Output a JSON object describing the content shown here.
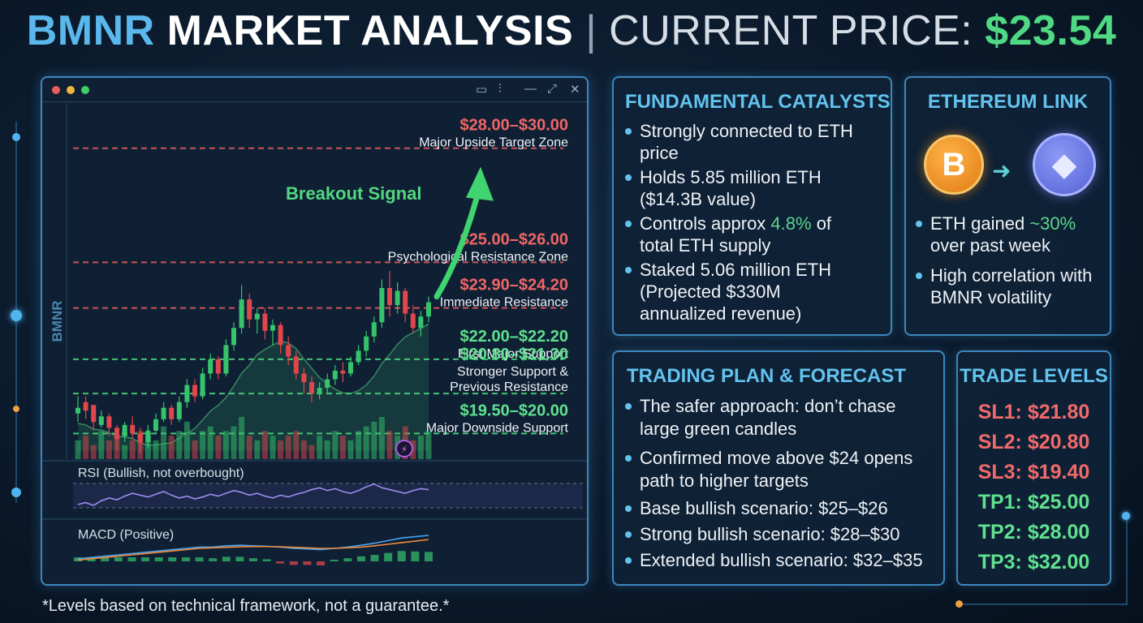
{
  "header": {
    "ticker": "BMNR",
    "title_rest": "MARKET ANALYSIS",
    "separator": "|",
    "price_label": "CURRENT PRICE:",
    "price_value": "$23.54"
  },
  "chart_window": {
    "side_label": "BMNR",
    "breakout_label": "Breakout Signal",
    "rsi_label": "RSI (Bullish, not overbought)",
    "macd_label": "MACD (Positive)"
  },
  "chart_data": {
    "type": "candlestick",
    "ylim": [
      18.6,
      31.0
    ],
    "levels": [
      {
        "range": "$28.00–$30.00",
        "label": "Major Upside Target Zone",
        "price": 29.5,
        "kind": "resistance"
      },
      {
        "range": "$25.00–$26.00",
        "label": "Psychological Resistance Zone",
        "price": 25.5,
        "kind": "resistance"
      },
      {
        "range": "$23.90–$24.20",
        "label": "Immediate Resistance",
        "price": 23.9,
        "kind": "resistance"
      },
      {
        "range": "$22.00–$22.20",
        "label": "First Major Support",
        "price": 22.1,
        "kind": "support"
      },
      {
        "range": "$20.80–$21.30",
        "label": "Stronger Support &",
        "label2": "Previous Resistance",
        "price": 20.9,
        "kind": "support"
      },
      {
        "range": "$19.50–$20.00",
        "label": "Major Downside Support",
        "price": 19.5,
        "kind": "support"
      }
    ],
    "candles": [
      [
        20.2,
        20.8,
        20.4,
        19.9
      ],
      [
        20.6,
        20.8,
        20.3,
        20.0
      ],
      [
        20.5,
        20.5,
        19.9,
        19.6
      ],
      [
        19.8,
        20.3,
        20.1,
        19.7
      ],
      [
        20.1,
        20.2,
        19.7,
        19.4
      ],
      [
        19.7,
        19.8,
        19.3,
        18.9
      ],
      [
        19.4,
        19.9,
        19.8,
        19.2
      ],
      [
        19.8,
        20.1,
        19.5,
        19.3
      ],
      [
        19.5,
        19.7,
        19.2,
        18.8
      ],
      [
        19.2,
        19.8,
        19.6,
        19.0
      ],
      [
        19.6,
        20.2,
        20.0,
        19.5
      ],
      [
        20.0,
        20.6,
        20.4,
        19.9
      ],
      [
        20.4,
        20.5,
        20.0,
        19.8
      ],
      [
        20.0,
        20.8,
        20.6,
        19.9
      ],
      [
        20.6,
        21.4,
        21.2,
        20.4
      ],
      [
        21.2,
        21.4,
        20.8,
        20.6
      ],
      [
        20.8,
        21.8,
        21.6,
        20.7
      ],
      [
        21.6,
        22.3,
        22.1,
        21.4
      ],
      [
        22.1,
        22.2,
        21.6,
        21.4
      ],
      [
        21.6,
        22.8,
        22.6,
        21.5
      ],
      [
        22.6,
        23.4,
        23.2,
        22.4
      ],
      [
        23.2,
        24.7,
        24.2,
        23.0
      ],
      [
        24.2,
        24.4,
        23.5,
        23.2
      ],
      [
        23.5,
        23.9,
        23.7,
        23.0
      ],
      [
        23.7,
        23.9,
        23.1,
        22.8
      ],
      [
        23.1,
        23.5,
        23.3,
        22.6
      ],
      [
        23.3,
        23.4,
        22.6,
        22.3
      ],
      [
        22.6,
        22.9,
        22.2,
        21.9
      ],
      [
        22.2,
        22.4,
        21.6,
        21.4
      ],
      [
        21.6,
        21.8,
        21.3,
        20.9
      ],
      [
        21.3,
        21.5,
        20.9,
        20.6
      ],
      [
        20.9,
        21.3,
        21.1,
        20.7
      ],
      [
        21.1,
        21.6,
        21.4,
        20.9
      ],
      [
        21.4,
        21.9,
        21.7,
        21.2
      ],
      [
        21.7,
        22.0,
        21.6,
        21.3
      ],
      [
        21.6,
        22.2,
        22.0,
        21.5
      ],
      [
        22.0,
        22.6,
        22.4,
        21.9
      ],
      [
        22.4,
        23.1,
        22.9,
        22.2
      ],
      [
        22.9,
        23.6,
        23.4,
        22.7
      ],
      [
        23.4,
        24.9,
        24.6,
        23.2
      ],
      [
        24.6,
        25.2,
        24.0,
        23.6
      ],
      [
        24.0,
        24.8,
        24.5,
        23.7
      ],
      [
        24.5,
        24.6,
        23.7,
        23.4
      ],
      [
        23.7,
        24.0,
        23.2,
        23.0
      ],
      [
        23.2,
        23.8,
        23.6,
        22.9
      ],
      [
        23.6,
        24.3,
        24.1,
        23.4
      ]
    ],
    "volume": [
      4,
      5,
      3,
      6,
      4,
      5,
      3,
      4,
      6,
      5,
      4,
      7,
      5,
      6,
      8,
      4,
      6,
      7,
      5,
      6,
      7,
      9,
      5,
      4,
      6,
      5,
      4,
      5,
      6,
      4,
      3,
      5,
      4,
      6,
      5,
      4,
      6,
      7,
      8,
      9,
      6,
      5,
      7,
      4,
      5,
      6
    ],
    "rsi": [
      48,
      50,
      47,
      52,
      55,
      53,
      57,
      60,
      58,
      56,
      59,
      62,
      58,
      55,
      57,
      54,
      56,
      59,
      57,
      60,
      63,
      61,
      58,
      60,
      57,
      55,
      58,
      56,
      59,
      61,
      64,
      66,
      63,
      65,
      62,
      60,
      63,
      67,
      70,
      66,
      64,
      62,
      60,
      63,
      65,
      64
    ],
    "macd": [
      0.1,
      0.15,
      0.2,
      0.25,
      0.3,
      0.35,
      0.4,
      0.45,
      0.5,
      0.55,
      0.55,
      0.6,
      0.62,
      0.6,
      0.58,
      0.55,
      0.5,
      0.48,
      0.45,
      0.5,
      0.55,
      0.62,
      0.7,
      0.8,
      0.9,
      0.95,
      1.0
    ],
    "signal": [
      0.05,
      0.1,
      0.15,
      0.2,
      0.25,
      0.3,
      0.35,
      0.4,
      0.45,
      0.5,
      0.52,
      0.54,
      0.56,
      0.57,
      0.57,
      0.56,
      0.54,
      0.52,
      0.5,
      0.5,
      0.52,
      0.55,
      0.6,
      0.66,
      0.72,
      0.78,
      0.84
    ],
    "hist": [
      0.05,
      0.05,
      0.05,
      0.05,
      0.05,
      0.05,
      0.05,
      0.05,
      0.05,
      0.05,
      0.03,
      0.06,
      0.06,
      0.03,
      0.01,
      -0.01,
      -0.04,
      -0.04,
      -0.05,
      0.0,
      0.03,
      0.07,
      0.1,
      0.14,
      0.18,
      0.17,
      0.16
    ]
  },
  "fundamental": {
    "title": "FUNDAMENTAL CATALYSTS",
    "items": [
      {
        "a": "Strongly connected to ETH",
        "b": "price"
      },
      {
        "a": "Holds 5.85 million ETH",
        "b": "($14.3B value)"
      },
      {
        "a_pre": "Controls approx ",
        "a_hl": "4.8%",
        "a_post": " of",
        "b": "total ETH supply"
      },
      {
        "a": "Staked 5.06 million ETH",
        "b": "(Projected $330M",
        "c": "annualized revenue)"
      }
    ]
  },
  "eth_link": {
    "title": "ETHEREUM LINK",
    "btc_symbol": "B",
    "eth_symbol": "◆",
    "items": [
      {
        "a_pre": "ETH gained ",
        "a_hl": "~30%",
        "b": "over past week"
      },
      {
        "a": "High correlation with",
        "b": "BMNR volatility"
      }
    ]
  },
  "trading_plan": {
    "title": "TRADING PLAN & FORECAST",
    "items": [
      {
        "a": "The safer approach: don’t chase",
        "b": "large green candles"
      },
      {
        "a": "Confirmed move above $24 opens",
        "b": "path to higher targets"
      },
      {
        "a": "Base bullish scenario: $25–$26"
      },
      {
        "a": "Strong bullish scenario: $28–$30"
      },
      {
        "a": "Extended bullish scenario: $32–$35"
      }
    ]
  },
  "trade_levels": {
    "title": "TRADE LEVELS",
    "sl": [
      "SL1: $21.80",
      "SL2: $20.80",
      "SL3: $19.40"
    ],
    "tp": [
      "TP1: $25.00",
      "TP2: $28.00",
      "TP3: $32.00"
    ]
  },
  "footnote": "*Levels based on technical framework, not a guarantee.*",
  "colors": {
    "accent": "#62c3ee",
    "bull": "#35c46b",
    "bear": "#e0474c",
    "resistance_line": "#e05a5a",
    "support_line": "#4cd47c"
  }
}
